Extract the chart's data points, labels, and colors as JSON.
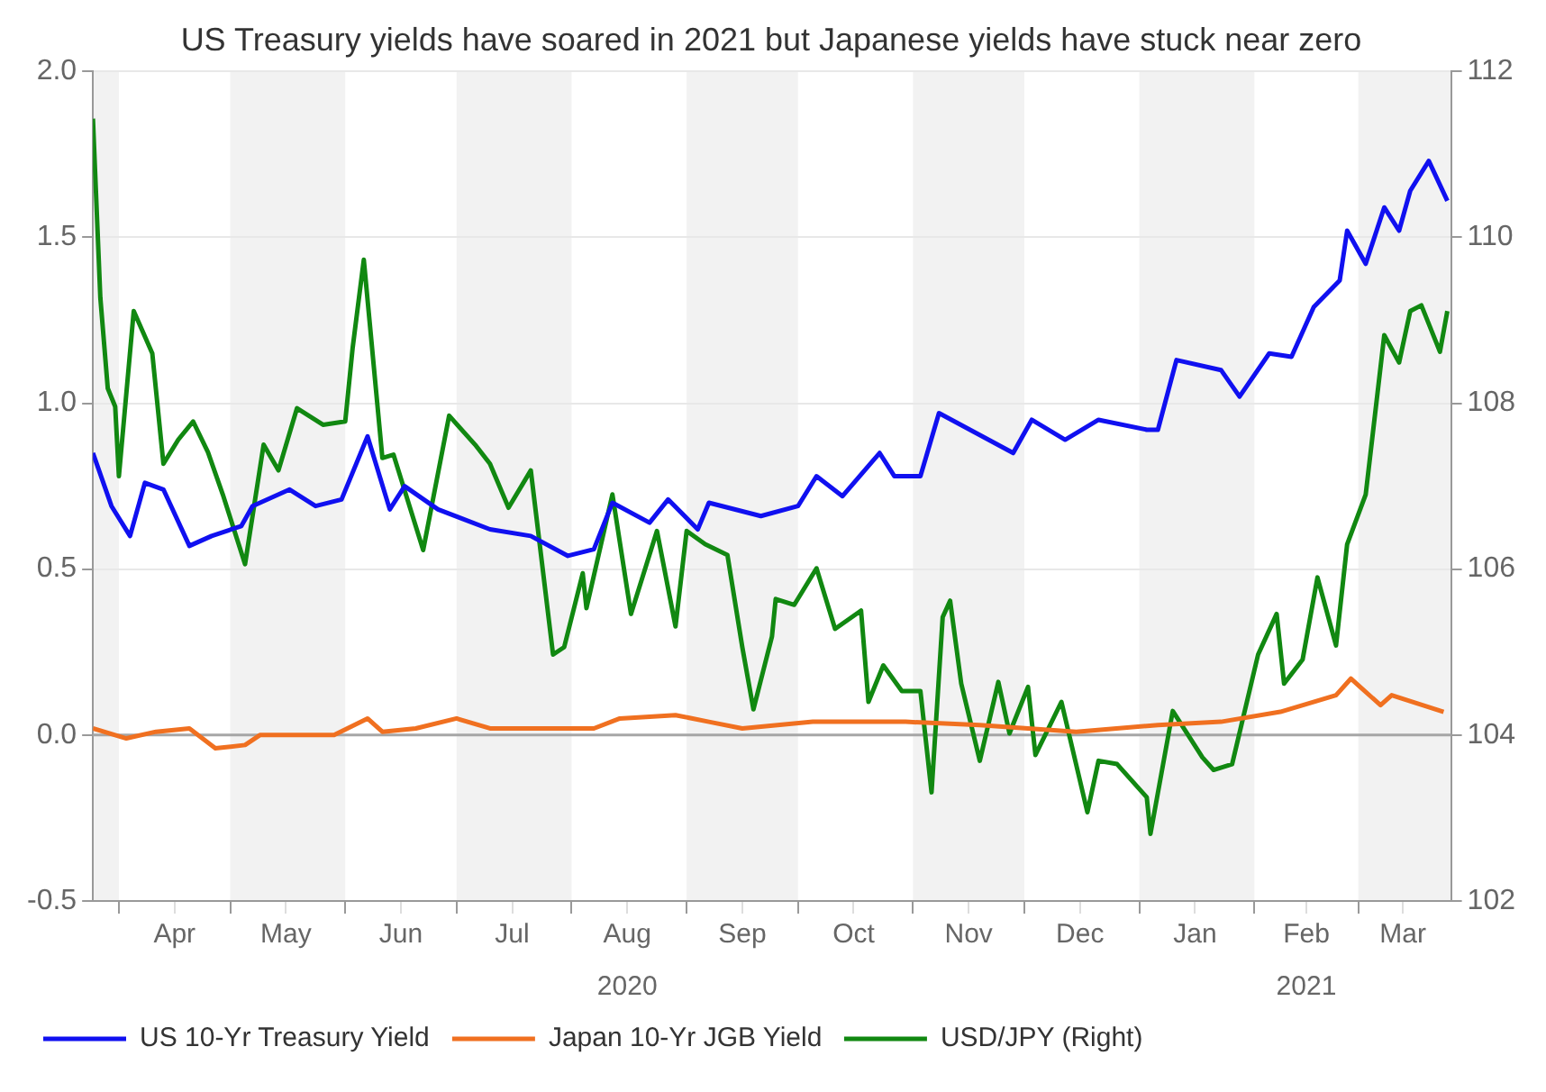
{
  "chart_data": {
    "type": "line",
    "title": "US Treasury yields have soared in 2021 but Japanese yields have stuck near zero",
    "xlim": [
      "2020-03-25",
      "2021-03-26"
    ],
    "xticks": [
      {
        "value": "2020-04-01",
        "label": null
      },
      {
        "value": "2020-04-16",
        "label": "Apr"
      },
      {
        "value": "2020-05-01",
        "label": null
      },
      {
        "value": "2020-05-16",
        "label": "May"
      },
      {
        "value": "2020-06-01",
        "label": null
      },
      {
        "value": "2020-06-16",
        "label": "Jun"
      },
      {
        "value": "2020-07-01",
        "label": null
      },
      {
        "value": "2020-07-16",
        "label": "Jul"
      },
      {
        "value": "2020-08-01",
        "label": null
      },
      {
        "value": "2020-08-16",
        "label": "Aug"
      },
      {
        "value": "2020-09-01",
        "label": null
      },
      {
        "value": "2020-09-16",
        "label": "Sep"
      },
      {
        "value": "2020-10-01",
        "label": null
      },
      {
        "value": "2020-10-16",
        "label": "Oct"
      },
      {
        "value": "2020-11-01",
        "label": null
      },
      {
        "value": "2020-11-16",
        "label": "Nov"
      },
      {
        "value": "2020-12-01",
        "label": null
      },
      {
        "value": "2020-12-16",
        "label": "Dec"
      },
      {
        "value": "2021-01-01",
        "label": null
      },
      {
        "value": "2021-01-16",
        "label": "Jan"
      },
      {
        "value": "2021-02-01",
        "label": null
      },
      {
        "value": "2021-02-15",
        "label": "Feb"
      },
      {
        "value": "2021-03-01",
        "label": null
      },
      {
        "value": "2021-03-13",
        "label": "Mar"
      }
    ],
    "x2lim": [
      "2020-03-25",
      "2021-03-26"
    ],
    "x2ticks": [
      {
        "value": "2020-08-16",
        "label": "2020"
      },
      {
        "value": "2021-02-15",
        "label": "2021"
      }
    ],
    "ylim": [
      -0.5,
      2.0
    ],
    "yticks": [
      {
        "value": -0.5,
        "label": "-0.5"
      },
      {
        "value": 0,
        "label": "0.0"
      },
      {
        "value": 0.5,
        "label": "0.5"
      },
      {
        "value": 1,
        "label": "1.0"
      },
      {
        "value": 1.5,
        "label": "1.5"
      },
      {
        "value": 2,
        "label": "2.0"
      }
    ],
    "y2lim": [
      102,
      112
    ],
    "y2ticks": [
      102,
      104,
      106,
      108,
      110,
      112
    ],
    "grid": "y",
    "legend": "bottom",
    "marker": "none",
    "bands": [
      {
        "axis": "x",
        "from": "2020-03-25",
        "to": "2020-04-01",
        "color": "#f2f2f2"
      },
      {
        "axis": "x",
        "from": "2020-05-01",
        "to": "2020-06-01",
        "color": "#f2f2f2"
      },
      {
        "axis": "x",
        "from": "2020-07-01",
        "to": "2020-08-01",
        "color": "#f2f2f2"
      },
      {
        "axis": "x",
        "from": "2020-09-01",
        "to": "2020-10-01",
        "color": "#f2f2f2"
      },
      {
        "axis": "x",
        "from": "2020-11-01",
        "to": "2020-12-01",
        "color": "#f2f2f2"
      },
      {
        "axis": "x",
        "from": "2021-01-01",
        "to": "2021-02-01",
        "color": "#f2f2f2"
      },
      {
        "axis": "x",
        "from": "2021-03-01",
        "to": "2021-03-26",
        "color": "#f2f2f2"
      }
    ],
    "ref_lines": [
      {
        "axis": "y",
        "value": 0,
        "color": "#a6a6a6"
      }
    ],
    "series": [
      {
        "name": "US 10-Yr Treasury Yield",
        "color": "#1010f0",
        "x": [
          "2020-03-25",
          "2020-03-30",
          "2020-04-04",
          "2020-04-08",
          "2020-04-13",
          "2020-04-20",
          "2020-04-26",
          "2020-05-04",
          "2020-05-07",
          "2020-05-17",
          "2020-05-24",
          "2020-05-31",
          "2020-06-07",
          "2020-06-13",
          "2020-06-17",
          "2020-06-26",
          "2020-07-10",
          "2020-07-21",
          "2020-07-31",
          "2020-08-07",
          "2020-08-12",
          "2020-08-22",
          "2020-08-27",
          "2020-09-04",
          "2020-09-07",
          "2020-09-21",
          "2020-10-01",
          "2020-10-06",
          "2020-10-13",
          "2020-10-23",
          "2020-10-27",
          "2020-11-03",
          "2020-11-08",
          "2020-11-28",
          "2020-12-03",
          "2020-12-12",
          "2020-12-21",
          "2021-01-03",
          "2021-01-06",
          "2021-01-11",
          "2021-01-23",
          "2021-01-28",
          "2021-02-05",
          "2021-02-11",
          "2021-02-17",
          "2021-02-24",
          "2021-02-26",
          "2021-03-03",
          "2021-03-08",
          "2021-03-12",
          "2021-03-15",
          "2021-03-20",
          "2021-03-25"
        ],
        "values": [
          0.85,
          0.69,
          0.6,
          0.76,
          0.74,
          0.57,
          0.6,
          0.63,
          0.69,
          0.74,
          0.69,
          0.71,
          0.9,
          0.68,
          0.75,
          0.68,
          0.62,
          0.6,
          0.54,
          0.56,
          0.7,
          0.64,
          0.71,
          0.62,
          0.7,
          0.66,
          0.69,
          0.78,
          0.72,
          0.85,
          0.78,
          0.78,
          0.97,
          0.85,
          0.95,
          0.89,
          0.95,
          0.92,
          0.92,
          1.13,
          1.1,
          1.02,
          1.15,
          1.14,
          1.29,
          1.37,
          1.52,
          1.42,
          1.59,
          1.52,
          1.64,
          1.73,
          1.61
        ]
      },
      {
        "name": "Japan 10-Yr JGB Yield",
        "color": "#f07020",
        "x": [
          "2020-03-25",
          "2020-04-03",
          "2020-04-11",
          "2020-04-20",
          "2020-04-27",
          "2020-05-05",
          "2020-05-09",
          "2020-05-29",
          "2020-06-07",
          "2020-06-11",
          "2020-06-20",
          "2020-07-01",
          "2020-07-10",
          "2020-07-21",
          "2020-08-07",
          "2020-08-14",
          "2020-08-29",
          "2020-09-07",
          "2020-09-16",
          "2020-10-05",
          "2020-10-30",
          "2020-11-19",
          "2020-12-15",
          "2021-01-06",
          "2021-01-23",
          "2021-02-08",
          "2021-02-23",
          "2021-02-27",
          "2021-03-07",
          "2021-03-10",
          "2021-03-24"
        ],
        "values": [
          0.02,
          -0.01,
          0.01,
          0.02,
          -0.04,
          -0.03,
          0,
          0,
          0.05,
          0.01,
          0.02,
          0.05,
          0.02,
          0.02,
          0.02,
          0.05,
          0.06,
          0.04,
          0.02,
          0.04,
          0.04,
          0.03,
          0.01,
          0.03,
          0.04,
          0.07,
          0.12,
          0.17,
          0.09,
          0.12,
          0.07
        ]
      },
      {
        "name": "USD/JPY (Right)",
        "color": "#118811",
        "axis": "y2",
        "x": [
          "2020-03-25",
          "2020-03-27",
          "2020-03-29",
          "2020-03-31",
          "2020-04-01",
          "2020-04-05",
          "2020-04-10",
          "2020-04-13",
          "2020-04-17",
          "2020-04-21",
          "2020-04-25",
          "2020-04-29",
          "2020-05-05",
          "2020-05-10",
          "2020-05-14",
          "2020-05-19",
          "2020-05-26",
          "2020-06-01",
          "2020-06-03",
          "2020-06-06",
          "2020-06-11",
          "2020-06-14",
          "2020-06-22",
          "2020-06-29",
          "2020-07-06",
          "2020-07-10",
          "2020-07-15",
          "2020-07-21",
          "2020-07-27",
          "2020-07-30",
          "2020-08-04",
          "2020-08-05",
          "2020-08-12",
          "2020-08-17",
          "2020-08-24",
          "2020-08-29",
          "2020-09-01",
          "2020-09-06",
          "2020-09-12",
          "2020-09-16",
          "2020-09-19",
          "2020-09-24",
          "2020-09-25",
          "2020-09-30",
          "2020-10-06",
          "2020-10-11",
          "2020-10-18",
          "2020-10-20",
          "2020-10-24",
          "2020-10-29",
          "2020-11-03",
          "2020-11-06",
          "2020-11-09",
          "2020-11-11",
          "2020-11-14",
          "2020-11-19",
          "2020-11-24",
          "2020-11-27",
          "2020-12-02",
          "2020-12-04",
          "2020-12-11",
          "2020-12-18",
          "2020-12-21",
          "2020-12-26",
          "2021-01-03",
          "2021-01-04",
          "2021-01-10",
          "2021-01-18",
          "2021-01-21",
          "2021-01-26",
          "2021-02-02",
          "2021-02-07",
          "2021-02-09",
          "2021-02-14",
          "2021-02-18",
          "2021-02-23",
          "2021-02-26",
          "2021-03-03",
          "2021-03-08",
          "2021-03-12",
          "2021-03-15",
          "2021-03-18",
          "2021-03-23",
          "2021-03-25"
        ],
        "values": [
          111.43,
          109.27,
          108.18,
          107.96,
          107.12,
          109.11,
          108.6,
          107.27,
          107.56,
          107.78,
          107.41,
          106.9,
          106.06,
          107.5,
          107.19,
          107.94,
          107.74,
          107.78,
          108.67,
          109.73,
          107.34,
          107.38,
          106.23,
          107.85,
          107.5,
          107.27,
          106.74,
          107.19,
          104.97,
          105.06,
          105.95,
          105.53,
          106.9,
          105.46,
          106.46,
          105.31,
          106.46,
          106.3,
          106.17,
          105.06,
          104.31,
          105.19,
          105.64,
          105.57,
          106.01,
          105.28,
          105.5,
          104.4,
          104.84,
          104.53,
          104.53,
          103.31,
          105.42,
          105.62,
          104.62,
          103.69,
          104.64,
          104.02,
          104.58,
          103.76,
          104.4,
          103.07,
          103.69,
          103.65,
          103.25,
          102.81,
          104.29,
          103.73,
          103.58,
          103.65,
          104.97,
          105.46,
          104.62,
          104.91,
          105.9,
          105.08,
          106.3,
          106.9,
          108.82,
          108.49,
          109.11,
          109.18,
          108.62,
          109.11
        ]
      }
    ]
  }
}
